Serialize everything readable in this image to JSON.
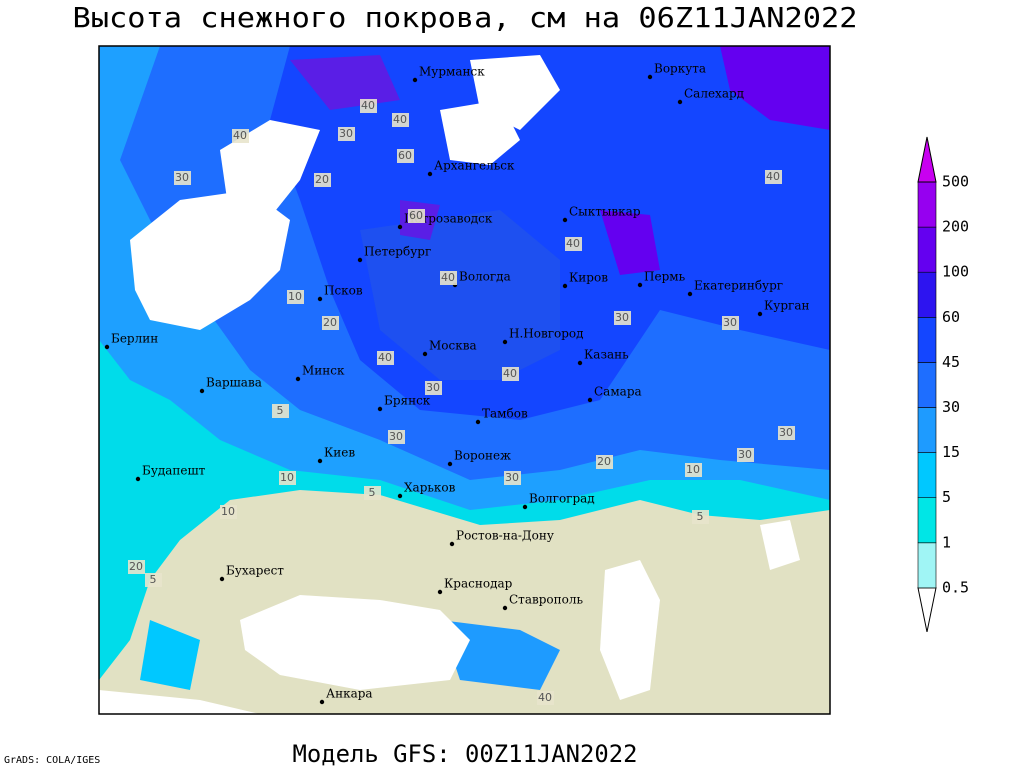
{
  "header": {
    "title": "Высота снежного покрова, см на 06Z11JAN2022"
  },
  "footer": {
    "model": "Модель GFS: 00Z11JAN2022",
    "credit": "GrADS: COLA/IGES"
  },
  "legend": {
    "levels": [
      0.5,
      1,
      5,
      15,
      30,
      45,
      60,
      100,
      200,
      500
    ],
    "colors": [
      "#ffffff",
      "#a0f5f5",
      "#00e6e6",
      "#00c8ff",
      "#1e9bff",
      "#1e6eff",
      "#1446ff",
      "#2d14f0",
      "#6400f0",
      "#9600f0",
      "#c800f0"
    ]
  },
  "cities": [
    "Мурманск",
    "Воркута",
    "Салехард",
    "Архангельск",
    "Петрозаводск",
    "Сыктывкар",
    "Петербург",
    "Вологда",
    "Киров",
    "Пермь",
    "Екатеринбург",
    "Курган",
    "Псков",
    "Берлин",
    "Москва",
    "Н.Новгород",
    "Казань",
    "Минск",
    "Варшава",
    "Брянск",
    "Тамбов",
    "Самара",
    "Киев",
    "Воронеж",
    "Будапешт",
    "Харьков",
    "Волгоград",
    "Ростов-на-Дону",
    "Бухарест",
    "Краснодар",
    "Ставрополь",
    "Анкара"
  ],
  "contour_labels": [
    40,
    30,
    20,
    40,
    60,
    40,
    30,
    60,
    40,
    40,
    30,
    30,
    10,
    20,
    40,
    40,
    30,
    30,
    5,
    10,
    30,
    20,
    10,
    5,
    10,
    20,
    5,
    30,
    30,
    40,
    40,
    5
  ]
}
